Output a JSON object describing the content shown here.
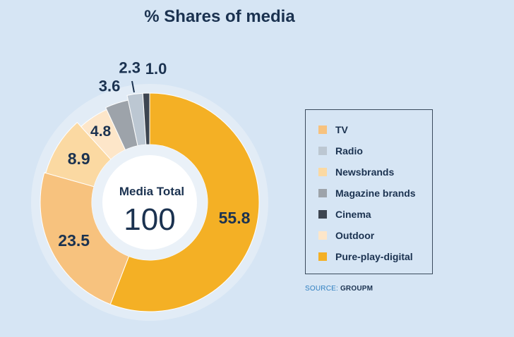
{
  "title": "% Shares of media",
  "center": {
    "label": "Media Total",
    "value": "100"
  },
  "source": {
    "prefix": "SOURCE: ",
    "name": "GROUPM"
  },
  "colors": {
    "background": "#d6e5f4",
    "text": "#1b3250",
    "source_prefix": "#2f7fc0"
  },
  "chart_data": {
    "type": "pie",
    "title": "% Shares of media",
    "categories": [
      "TV",
      "Radio",
      "Newsbrands",
      "Magazine brands",
      "Cinema",
      "Outdoor",
      "Pure-play-digital"
    ],
    "values": [
      23.5,
      2.3,
      8.9,
      3.6,
      1.0,
      4.8,
      55.8
    ],
    "value_labels": [
      "23.5",
      "2.3",
      "8.9",
      "3.6",
      "1.0",
      "4.8",
      "55.8"
    ],
    "colors": [
      "#f7c27e",
      "#bcc7d2",
      "#fbd9a2",
      "#9da3aa",
      "#3d4550",
      "#fde6c9",
      "#f4b025"
    ],
    "clockwise_order_from_top": [
      "Pure-play-digital",
      "TV",
      "Newsbrands",
      "Outdoor",
      "Magazine brands",
      "Radio",
      "Cinema"
    ],
    "legend_position": "right",
    "grid": false
  }
}
